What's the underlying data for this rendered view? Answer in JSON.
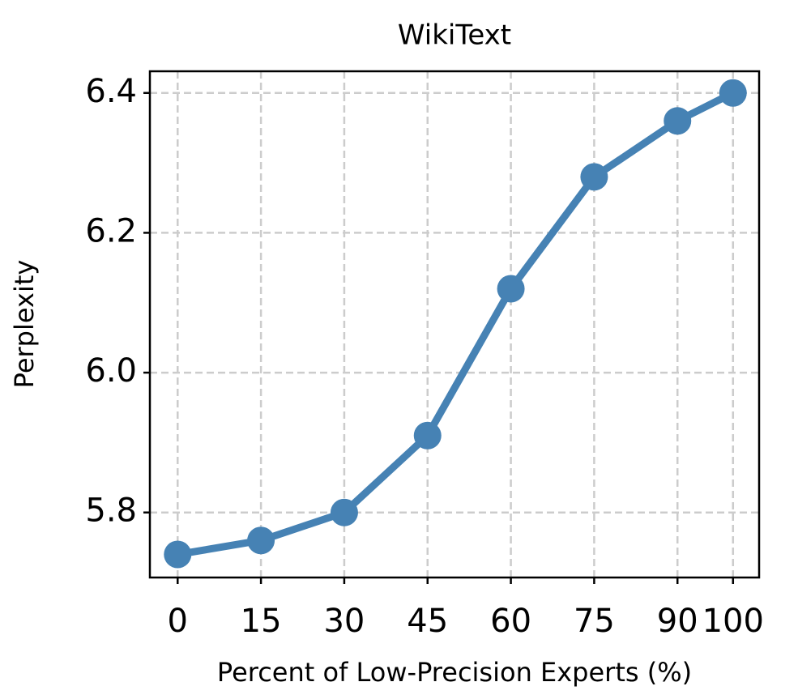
{
  "chart_data": {
    "type": "line",
    "title": "WikiText",
    "x_label": "Percent of Low-Precision Experts (%)",
    "y_label": "Perplexity",
    "x": [
      0,
      15,
      30,
      45,
      60,
      75,
      90,
      100
    ],
    "series": [
      {
        "color": "#4682b4",
        "values": [
          5.74,
          5.76,
          5.8,
          5.91,
          6.12,
          6.28,
          6.36,
          6.4
        ]
      }
    ],
    "xlim": [
      -5,
      104.7
    ],
    "ylim": [
      5.707,
      6.431
    ],
    "xticks": [
      0,
      15,
      30,
      45,
      60,
      75,
      90,
      100
    ],
    "yticks": [
      5.8,
      {
        "value": 6,
        "label": "6.0"
      },
      6.2,
      6.4
    ],
    "grid": true
  }
}
